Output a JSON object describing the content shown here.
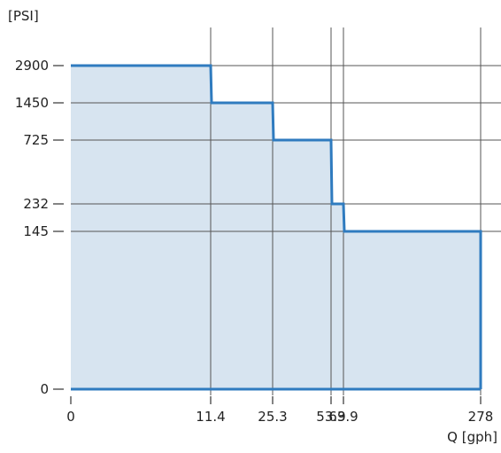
{
  "chart_data": {
    "type": "area",
    "title": "",
    "xlabel": "Q [gph]",
    "ylabel": "[PSI]",
    "x_ticks": [
      "0",
      "11.4",
      "25.3",
      "53.9",
      "63.9",
      "278"
    ],
    "y_ticks": [
      "0",
      "145",
      "232",
      "725",
      "1450",
      "2900"
    ],
    "series": [
      {
        "steps": [
          {
            "from": "0",
            "to": "11.4",
            "y": "2900"
          },
          {
            "from": "11.4",
            "to": "25.3",
            "y": "1450"
          },
          {
            "from": "25.3",
            "to": "53.9",
            "y": "725"
          },
          {
            "from": "53.9",
            "to": "63.9",
            "y": "232"
          },
          {
            "from": "63.9",
            "to": "278",
            "y": "145"
          }
        ]
      }
    ],
    "x_scale": "non-uniform",
    "y_scale": "non-uniform",
    "grid": true,
    "colors": {
      "line": "#2f7bbf",
      "fill": "#d7e4f0",
      "grid": "#555555",
      "axis": "#2f7bbf",
      "text": "#222222"
    }
  }
}
